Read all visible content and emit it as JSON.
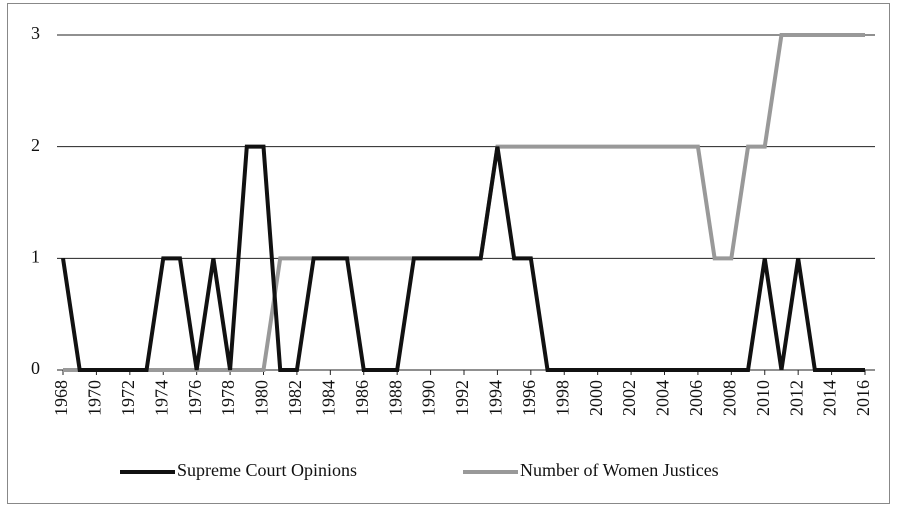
{
  "chart_data": {
    "type": "line",
    "x": [
      1968,
      1969,
      1970,
      1971,
      1972,
      1973,
      1974,
      1975,
      1976,
      1977,
      1978,
      1979,
      1980,
      1981,
      1982,
      1983,
      1984,
      1985,
      1986,
      1987,
      1988,
      1989,
      1990,
      1991,
      1992,
      1993,
      1994,
      1995,
      1996,
      1997,
      1998,
      1999,
      2000,
      2001,
      2002,
      2003,
      2004,
      2005,
      2006,
      2007,
      2008,
      2009,
      2010,
      2011,
      2012,
      2013,
      2014,
      2015,
      2016
    ],
    "series": [
      {
        "name": "Supreme Court Opinions",
        "color": "#111111",
        "values": [
          1,
          0,
          0,
          0,
          0,
          0,
          1,
          1,
          0,
          1,
          0,
          2,
          2,
          0,
          0,
          1,
          1,
          1,
          0,
          0,
          0,
          1,
          1,
          1,
          1,
          1,
          2,
          1,
          1,
          0,
          0,
          0,
          0,
          0,
          0,
          0,
          0,
          0,
          0,
          0,
          0,
          0,
          1,
          0,
          1,
          0,
          0,
          0,
          0
        ]
      },
      {
        "name": "Number of Women Justices",
        "color": "#999999",
        "values": [
          0,
          0,
          0,
          0,
          0,
          0,
          0,
          0,
          0,
          0,
          0,
          0,
          0,
          1,
          1,
          1,
          1,
          1,
          1,
          1,
          1,
          1,
          1,
          1,
          1,
          1,
          2,
          2,
          2,
          2,
          2,
          2,
          2,
          2,
          2,
          2,
          2,
          2,
          2,
          1,
          1,
          2,
          2,
          3,
          3,
          3,
          3,
          3,
          3
        ]
      }
    ],
    "xlim": [
      1968,
      2016
    ],
    "xticks": [
      1968,
      1970,
      1972,
      1974,
      1976,
      1978,
      1980,
      1982,
      1984,
      1986,
      1988,
      1990,
      1992,
      1994,
      1996,
      1998,
      2000,
      2002,
      2004,
      2006,
      2008,
      2010,
      2012,
      2014,
      2016
    ],
    "ylim": [
      0,
      3
    ],
    "yticks": [
      0,
      1,
      2,
      3
    ],
    "grid": true,
    "legend": "bottom"
  }
}
